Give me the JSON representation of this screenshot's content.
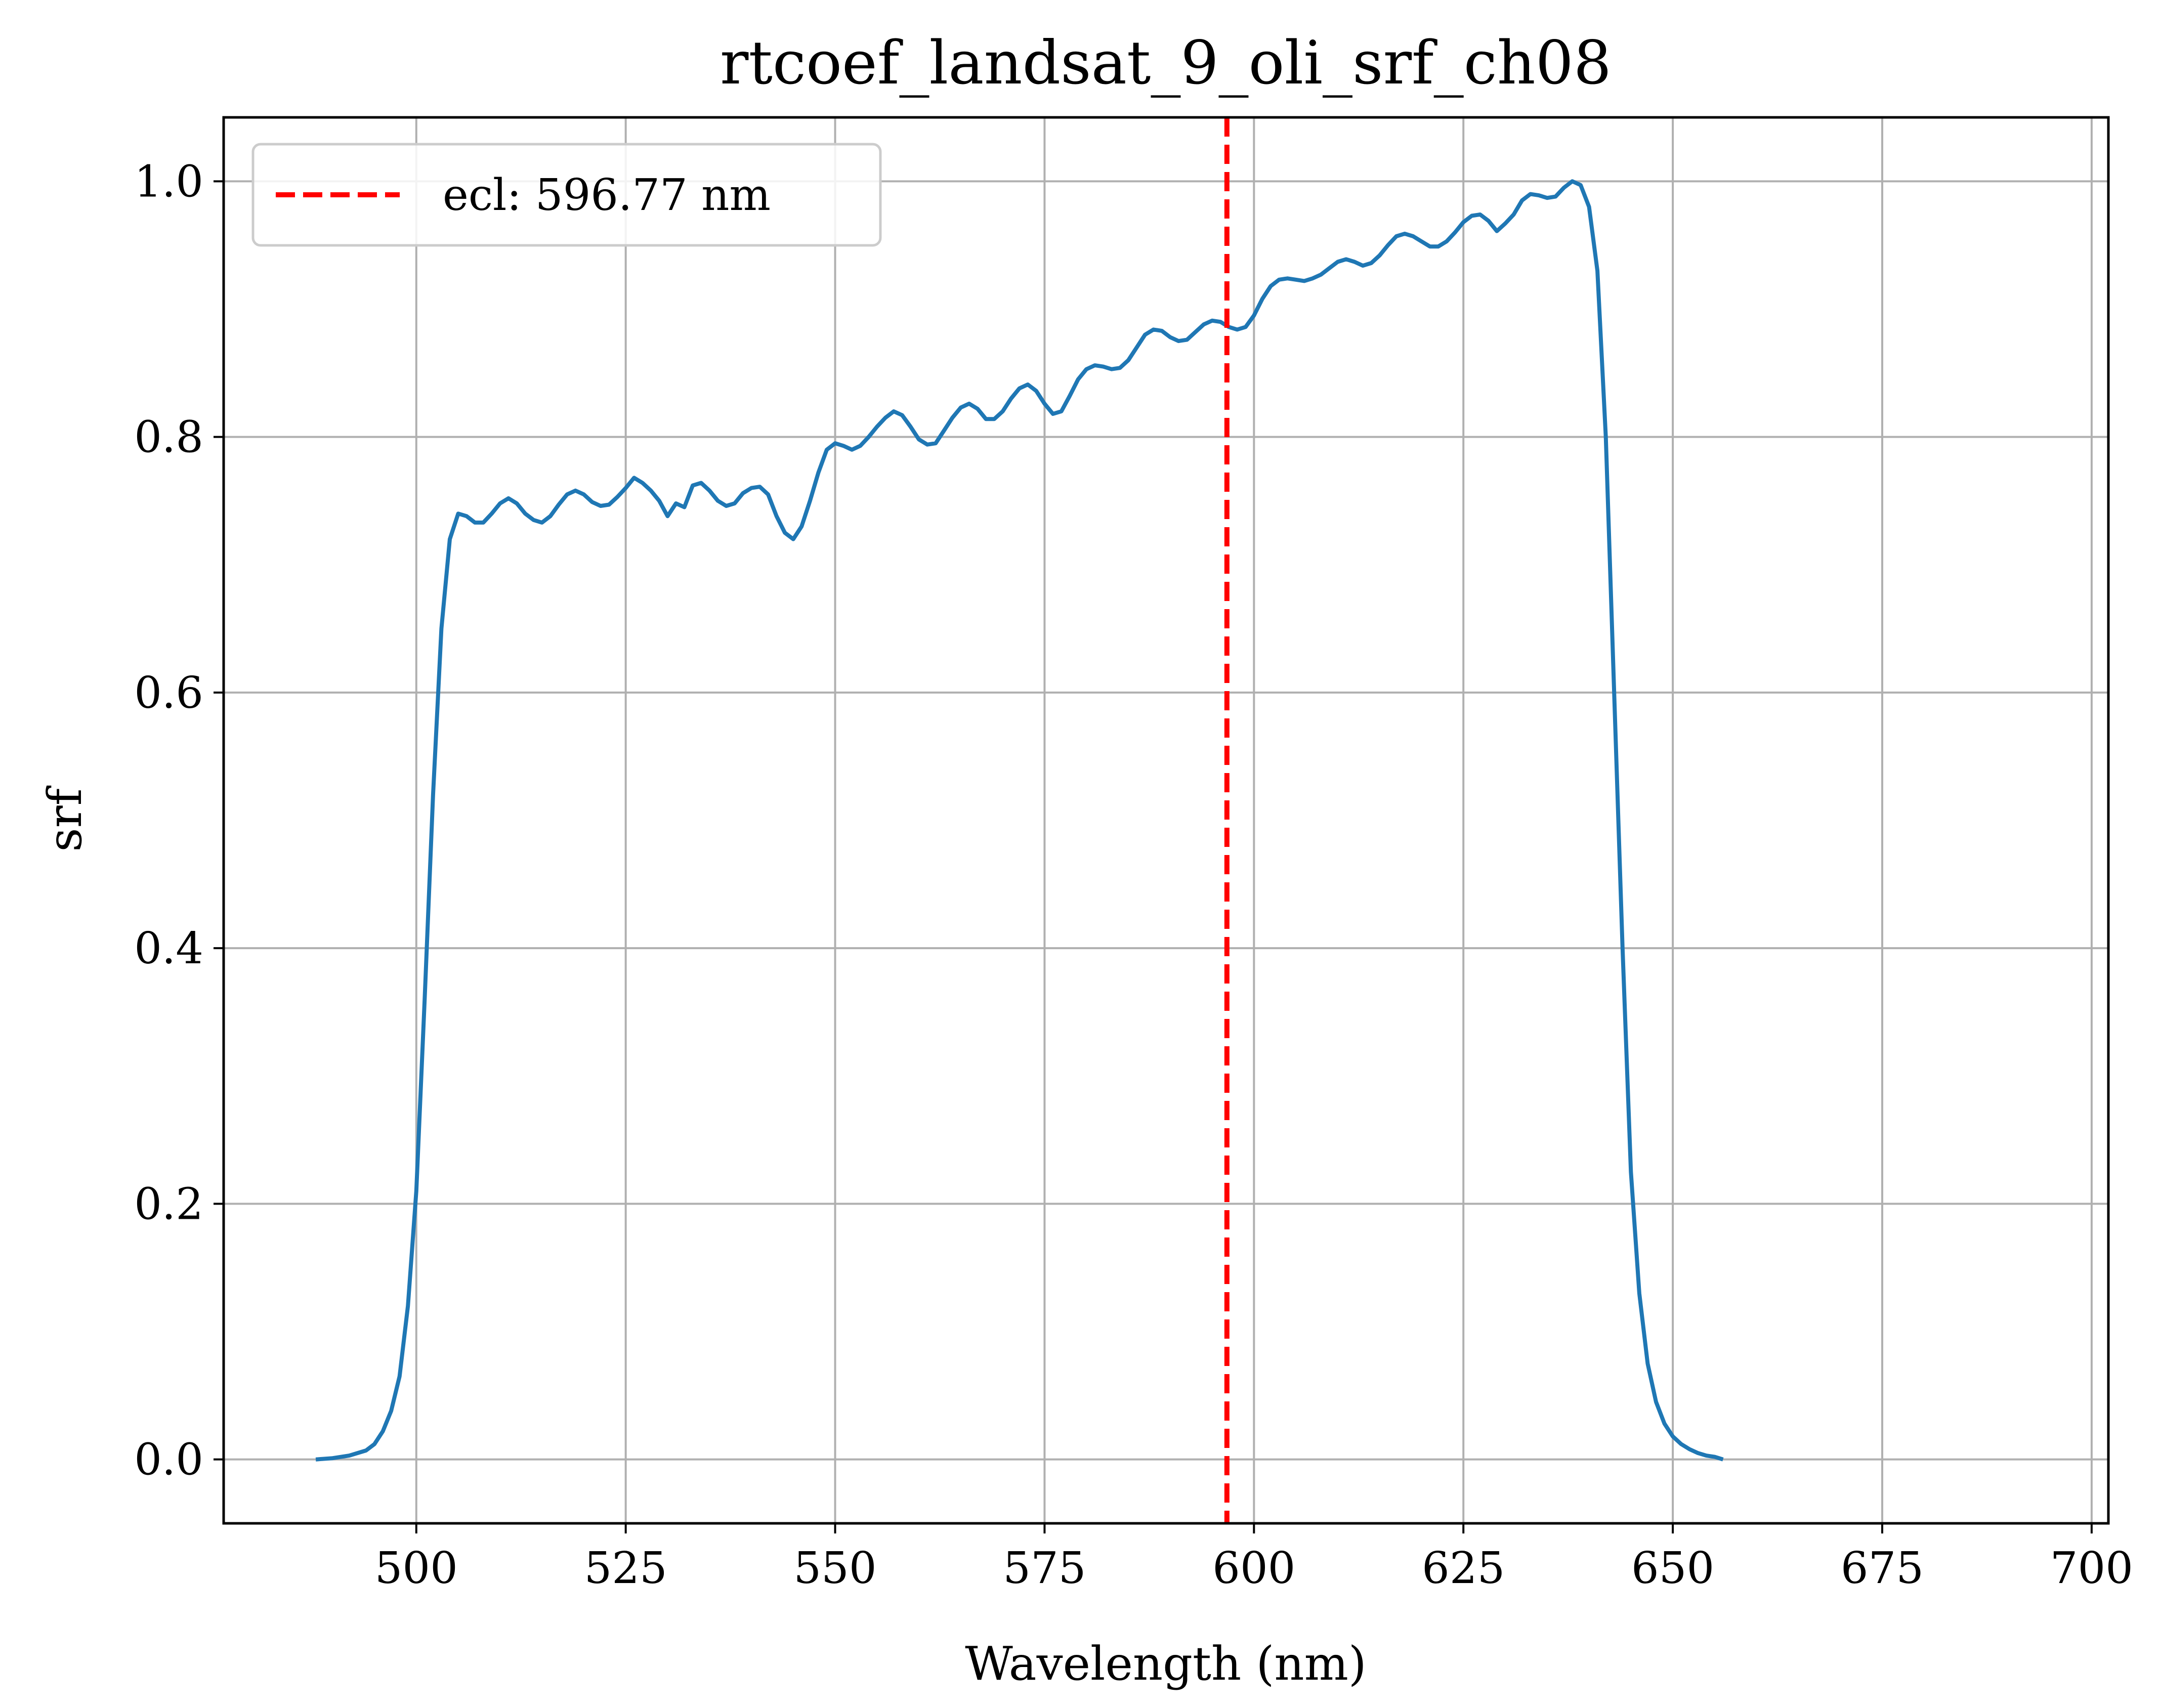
{
  "chart_data": {
    "type": "line",
    "title": "rtcoef_landsat_9_oli_srf_ch08",
    "xlabel": "Wavelength (nm)",
    "ylabel": "srf",
    "xlim": [
      477,
      702
    ],
    "ylim": [
      -0.05,
      1.05
    ],
    "xticks": [
      500,
      525,
      550,
      575,
      600,
      625,
      650,
      675,
      700
    ],
    "yticks": [
      0.0,
      0.2,
      0.4,
      0.6,
      0.8,
      1.0
    ],
    "xtick_labels": [
      "500",
      "525",
      "550",
      "575",
      "600",
      "625",
      "650",
      "675",
      "700"
    ],
    "ytick_labels": [
      "0.0",
      "0.2",
      "0.4",
      "0.6",
      "0.8",
      "1.0"
    ],
    "grid": true,
    "legend_position": "top-left",
    "series": [
      {
        "kind": "line",
        "color": "#1f77b4",
        "points": [
          [
            488,
            0.0
          ],
          [
            490,
            0.001
          ],
          [
            492,
            0.003
          ],
          [
            494,
            0.007
          ],
          [
            495,
            0.012
          ],
          [
            496,
            0.022
          ],
          [
            497,
            0.038
          ],
          [
            498,
            0.065
          ],
          [
            499,
            0.12
          ],
          [
            500,
            0.21
          ],
          [
            501,
            0.36
          ],
          [
            502,
            0.52
          ],
          [
            503,
            0.65
          ],
          [
            504,
            0.72
          ],
          [
            505,
            0.74
          ],
          [
            506,
            0.738
          ],
          [
            507,
            0.733
          ],
          [
            508,
            0.733
          ],
          [
            509,
            0.74
          ],
          [
            510,
            0.748
          ],
          [
            511,
            0.752
          ],
          [
            512,
            0.748
          ],
          [
            513,
            0.74
          ],
          [
            514,
            0.735
          ],
          [
            515,
            0.733
          ],
          [
            516,
            0.738
          ],
          [
            517,
            0.747
          ],
          [
            518,
            0.755
          ],
          [
            519,
            0.758
          ],
          [
            520,
            0.755
          ],
          [
            521,
            0.749
          ],
          [
            522,
            0.746
          ],
          [
            523,
            0.747
          ],
          [
            524,
            0.753
          ],
          [
            525,
            0.76
          ],
          [
            526,
            0.768
          ],
          [
            527,
            0.764
          ],
          [
            528,
            0.758
          ],
          [
            529,
            0.75
          ],
          [
            530,
            0.738
          ],
          [
            531,
            0.748
          ],
          [
            532,
            0.745
          ],
          [
            533,
            0.762
          ],
          [
            534,
            0.764
          ],
          [
            535,
            0.758
          ],
          [
            536,
            0.75
          ],
          [
            537,
            0.746
          ],
          [
            538,
            0.748
          ],
          [
            539,
            0.756
          ],
          [
            540,
            0.76
          ],
          [
            541,
            0.761
          ],
          [
            542,
            0.755
          ],
          [
            543,
            0.738
          ],
          [
            544,
            0.725
          ],
          [
            545,
            0.72
          ],
          [
            546,
            0.73
          ],
          [
            547,
            0.75
          ],
          [
            548,
            0.772
          ],
          [
            549,
            0.79
          ],
          [
            550,
            0.795
          ],
          [
            551,
            0.793
          ],
          [
            552,
            0.79
          ],
          [
            553,
            0.793
          ],
          [
            554,
            0.8
          ],
          [
            555,
            0.808
          ],
          [
            556,
            0.815
          ],
          [
            557,
            0.82
          ],
          [
            558,
            0.817
          ],
          [
            559,
            0.808
          ],
          [
            560,
            0.798
          ],
          [
            561,
            0.794
          ],
          [
            562,
            0.795
          ],
          [
            563,
            0.805
          ],
          [
            564,
            0.815
          ],
          [
            565,
            0.823
          ],
          [
            566,
            0.826
          ],
          [
            567,
            0.822
          ],
          [
            568,
            0.814
          ],
          [
            569,
            0.814
          ],
          [
            570,
            0.82
          ],
          [
            571,
            0.83
          ],
          [
            572,
            0.838
          ],
          [
            573,
            0.841
          ],
          [
            574,
            0.836
          ],
          [
            575,
            0.826
          ],
          [
            576,
            0.818
          ],
          [
            577,
            0.82
          ],
          [
            578,
            0.832
          ],
          [
            579,
            0.845
          ],
          [
            580,
            0.853
          ],
          [
            581,
            0.856
          ],
          [
            582,
            0.855
          ],
          [
            583,
            0.853
          ],
          [
            584,
            0.854
          ],
          [
            585,
            0.86
          ],
          [
            586,
            0.87
          ],
          [
            587,
            0.88
          ],
          [
            588,
            0.884
          ],
          [
            589,
            0.883
          ],
          [
            590,
            0.878
          ],
          [
            591,
            0.875
          ],
          [
            592,
            0.876
          ],
          [
            593,
            0.882
          ],
          [
            594,
            0.888
          ],
          [
            595,
            0.891
          ],
          [
            596,
            0.89
          ],
          [
            597,
            0.886
          ],
          [
            598,
            0.884
          ],
          [
            599,
            0.886
          ],
          [
            600,
            0.895
          ],
          [
            601,
            0.908
          ],
          [
            602,
            0.918
          ],
          [
            603,
            0.923
          ],
          [
            604,
            0.924
          ],
          [
            605,
            0.923
          ],
          [
            606,
            0.922
          ],
          [
            607,
            0.924
          ],
          [
            608,
            0.927
          ],
          [
            609,
            0.932
          ],
          [
            610,
            0.937
          ],
          [
            611,
            0.939
          ],
          [
            612,
            0.937
          ],
          [
            613,
            0.934
          ],
          [
            614,
            0.936
          ],
          [
            615,
            0.942
          ],
          [
            616,
            0.95
          ],
          [
            617,
            0.957
          ],
          [
            618,
            0.959
          ],
          [
            619,
            0.957
          ],
          [
            620,
            0.953
          ],
          [
            621,
            0.949
          ],
          [
            622,
            0.949
          ],
          [
            623,
            0.953
          ],
          [
            624,
            0.96
          ],
          [
            625,
            0.968
          ],
          [
            626,
            0.973
          ],
          [
            627,
            0.974
          ],
          [
            628,
            0.969
          ],
          [
            629,
            0.961
          ],
          [
            630,
            0.967
          ],
          [
            631,
            0.974
          ],
          [
            632,
            0.985
          ],
          [
            633,
            0.99
          ],
          [
            634,
            0.989
          ],
          [
            635,
            0.987
          ],
          [
            636,
            0.988
          ],
          [
            637,
            0.995
          ],
          [
            638,
            1.0
          ],
          [
            639,
            0.997
          ],
          [
            640,
            0.98
          ],
          [
            641,
            0.93
          ],
          [
            642,
            0.8
          ],
          [
            643,
            0.6
          ],
          [
            644,
            0.4
          ],
          [
            645,
            0.225
          ],
          [
            646,
            0.13
          ],
          [
            647,
            0.075
          ],
          [
            648,
            0.045
          ],
          [
            649,
            0.028
          ],
          [
            650,
            0.018
          ],
          [
            651,
            0.012
          ],
          [
            652,
            0.008
          ],
          [
            653,
            0.005
          ],
          [
            654,
            0.003
          ],
          [
            655,
            0.002
          ],
          [
            656,
            0.0
          ]
        ]
      }
    ],
    "vline": {
      "x": 596.77,
      "color": "#ff0000",
      "label": "ecl: 596.77 nm"
    },
    "legend": {
      "line_label": "ecl: 596.77 nm"
    }
  }
}
